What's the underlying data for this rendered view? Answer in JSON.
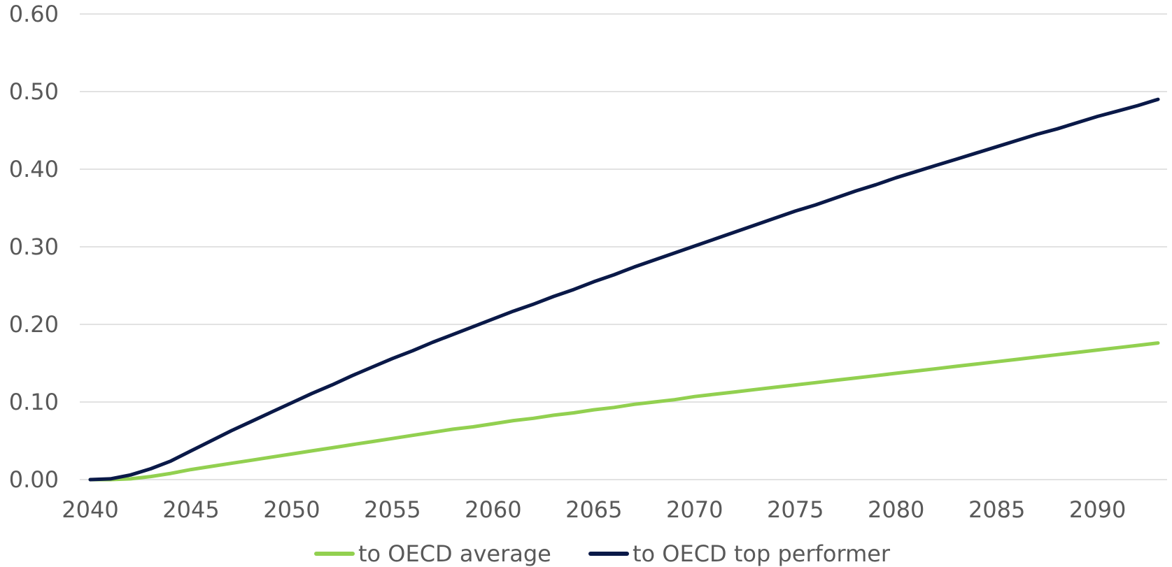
{
  "chart_data": {
    "type": "line",
    "title": "",
    "xlabel": "",
    "ylabel": "",
    "x": [
      2040,
      2041,
      2042,
      2043,
      2044,
      2045,
      2046,
      2047,
      2048,
      2049,
      2050,
      2051,
      2052,
      2053,
      2054,
      2055,
      2056,
      2057,
      2058,
      2059,
      2060,
      2061,
      2062,
      2063,
      2064,
      2065,
      2066,
      2067,
      2068,
      2069,
      2070,
      2071,
      2072,
      2073,
      2074,
      2075,
      2076,
      2077,
      2078,
      2079,
      2080,
      2081,
      2082,
      2083,
      2084,
      2085,
      2086,
      2087,
      2088,
      2089,
      2090,
      2091,
      2092,
      2093
    ],
    "xlim": [
      2040,
      2093
    ],
    "ylim": [
      0,
      0.6
    ],
    "x_ticks": [
      "2040",
      "2045",
      "2050",
      "2055",
      "2060",
      "2065",
      "2070",
      "2075",
      "2080",
      "2085",
      "2090"
    ],
    "y_ticks": [
      "0.00",
      "0.10",
      "0.20",
      "0.30",
      "0.40",
      "0.50",
      "0.60"
    ],
    "grid": "horizontal",
    "legend_position": "bottom",
    "series": [
      {
        "name": "to OECD average",
        "color": "#92d050",
        "values": [
          0.0,
          0.0,
          0.001,
          0.004,
          0.008,
          0.013,
          0.017,
          0.021,
          0.025,
          0.029,
          0.033,
          0.037,
          0.041,
          0.045,
          0.049,
          0.053,
          0.057,
          0.061,
          0.065,
          0.068,
          0.072,
          0.076,
          0.079,
          0.083,
          0.086,
          0.09,
          0.093,
          0.097,
          0.1,
          0.103,
          0.107,
          0.11,
          0.113,
          0.116,
          0.119,
          0.122,
          0.125,
          0.128,
          0.131,
          0.134,
          0.137,
          0.14,
          0.143,
          0.146,
          0.149,
          0.152,
          0.155,
          0.158,
          0.161,
          0.164,
          0.167,
          0.17,
          0.173,
          0.176
        ]
      },
      {
        "name": "to OECD top performer",
        "color": "#0a1948",
        "values": [
          0.0,
          0.001,
          0.006,
          0.014,
          0.024,
          0.037,
          0.05,
          0.063,
          0.075,
          0.087,
          0.099,
          0.111,
          0.122,
          0.134,
          0.145,
          0.156,
          0.166,
          0.177,
          0.187,
          0.197,
          0.207,
          0.217,
          0.226,
          0.236,
          0.245,
          0.255,
          0.264,
          0.274,
          0.283,
          0.292,
          0.301,
          0.31,
          0.319,
          0.328,
          0.337,
          0.346,
          0.354,
          0.363,
          0.372,
          0.38,
          0.389,
          0.397,
          0.405,
          0.413,
          0.421,
          0.429,
          0.437,
          0.445,
          0.452,
          0.46,
          0.468,
          0.475,
          0.482,
          0.49
        ]
      }
    ]
  }
}
